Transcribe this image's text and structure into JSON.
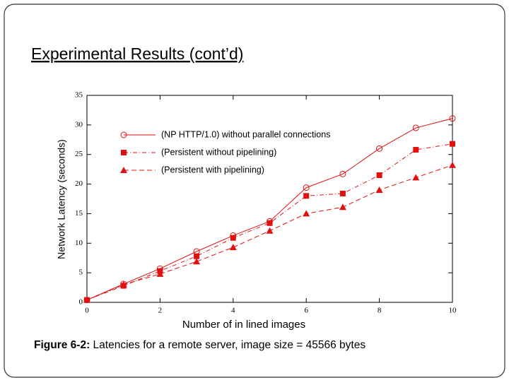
{
  "title": "Experimental Results (cont’d)",
  "chart_data": {
    "type": "line",
    "ylabel": "Network Latency (seconds)",
    "xlabel": "Number of in lined images",
    "x": [
      0,
      1,
      2,
      3,
      4,
      5,
      6,
      7,
      8,
      9,
      10
    ],
    "xlim": [
      0,
      10
    ],
    "xticks": [
      0,
      2,
      4,
      6,
      8,
      10
    ],
    "ylim": [
      0,
      35
    ],
    "yticks": [
      0,
      5,
      10,
      15,
      20,
      25,
      30,
      35
    ],
    "legend": "upper left",
    "series": [
      {
        "name": "(NP HTTP/1.0) without parallel connections",
        "color": "#e01010",
        "marker": "circle",
        "line_style": "solid",
        "values": [
          0.4,
          3.1,
          5.7,
          8.6,
          11.3,
          13.7,
          19.4,
          21.7,
          26.0,
          29.5,
          31.1
        ]
      },
      {
        "name": "(Persistent without pipelining)",
        "color": "#e01010",
        "marker": "square",
        "line_style": "dashdot",
        "values": [
          0.4,
          2.8,
          5.3,
          7.8,
          10.9,
          13.4,
          18.0,
          18.4,
          21.5,
          25.8,
          26.8
        ]
      },
      {
        "name": "(Persistent with pipelining)",
        "color": "#e01010",
        "marker": "triangle",
        "line_style": "dashed",
        "values": [
          0.4,
          3.0,
          4.8,
          6.9,
          9.3,
          12.1,
          15.0,
          16.1,
          19.0,
          21.1,
          23.2
        ]
      }
    ]
  },
  "caption": {
    "label": "Figure 6-2:",
    "text": "Latencies for a remote server, image size = 45566 bytes"
  }
}
